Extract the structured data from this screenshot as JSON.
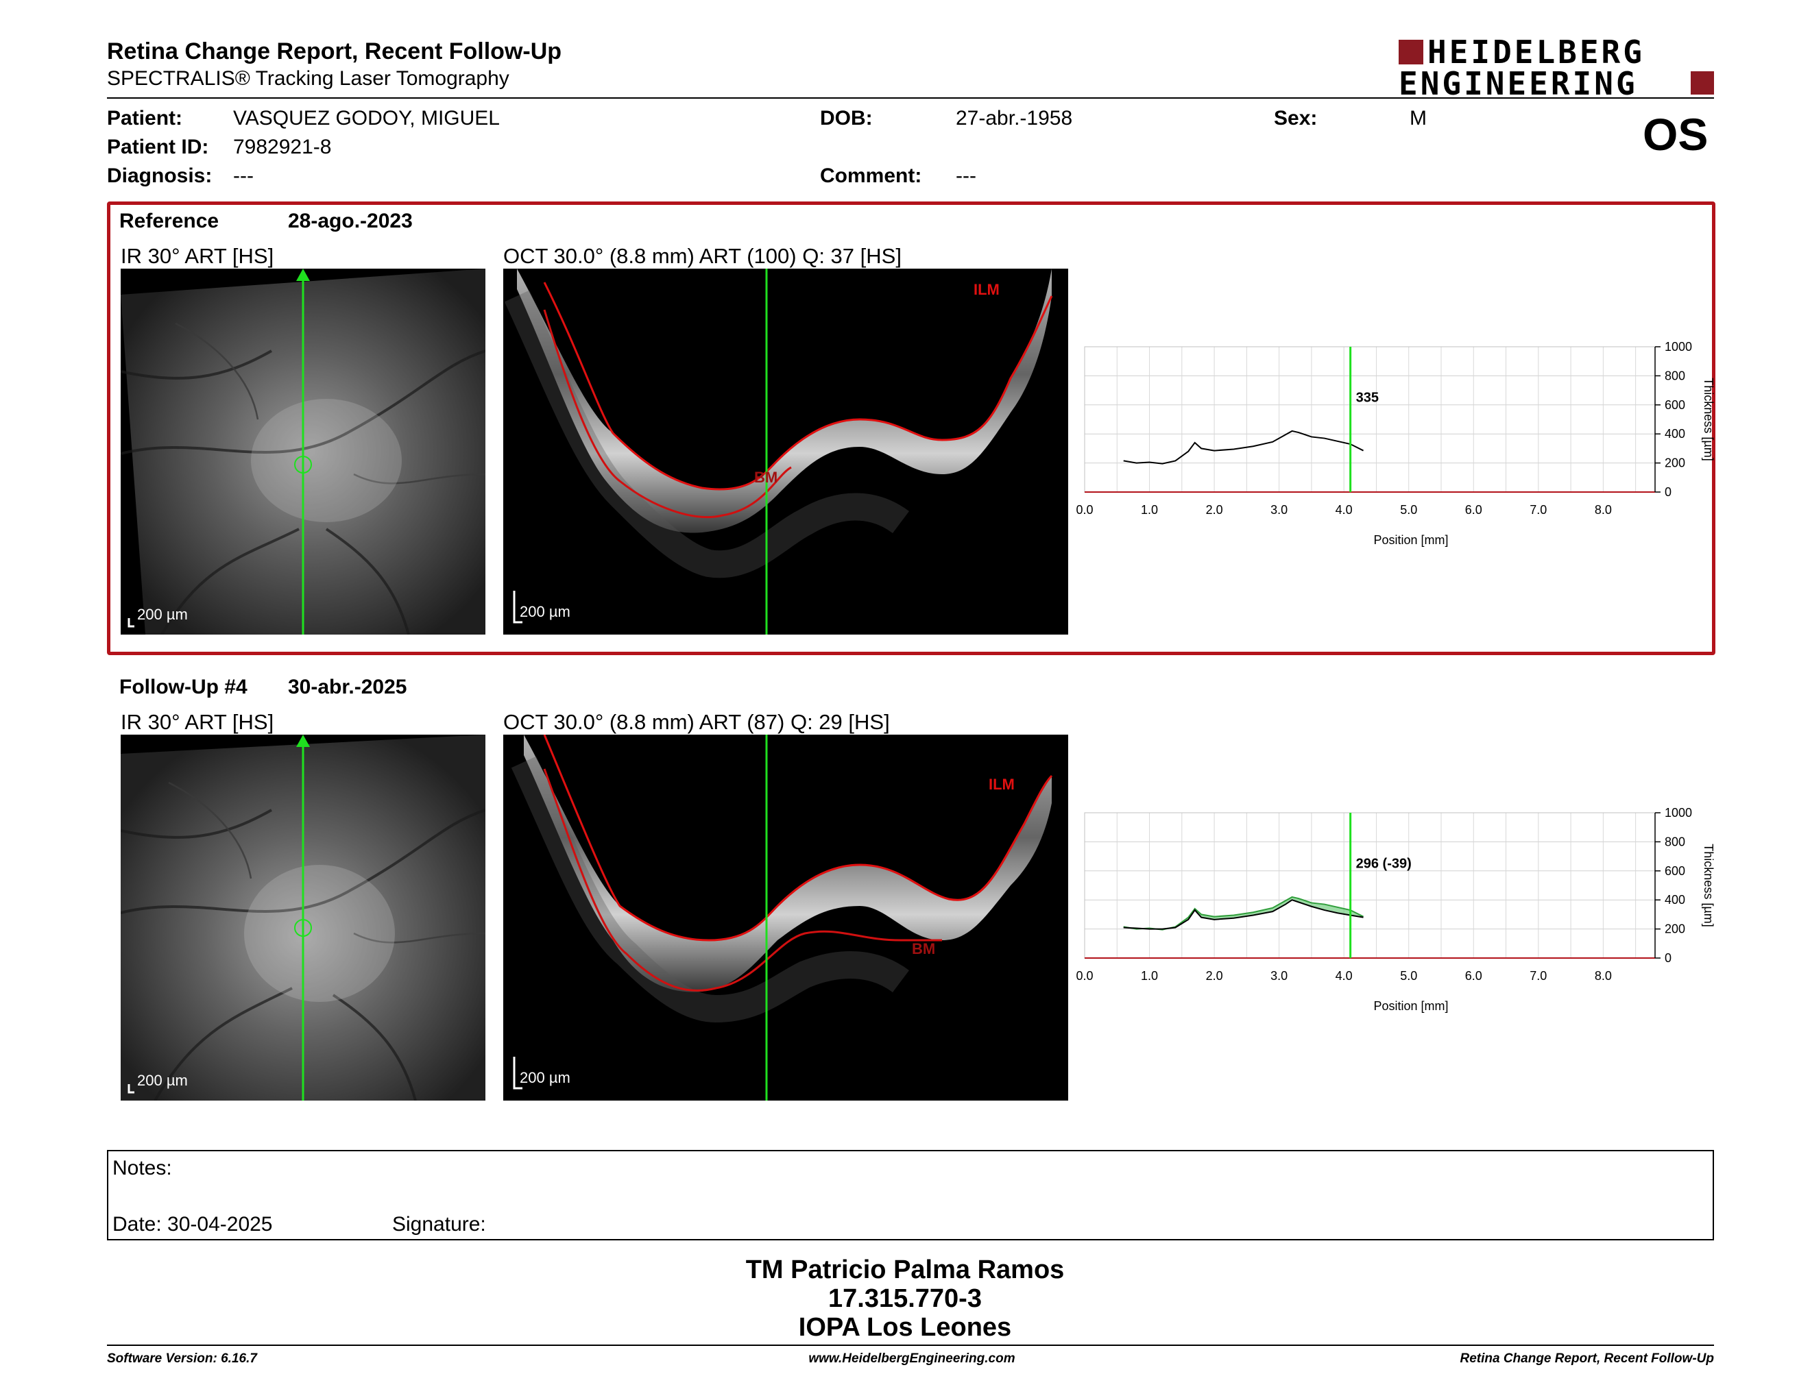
{
  "header": {
    "title": "Retina Change Report, Recent Follow-Up",
    "subtitle": "SPECTRALIS® Tracking Laser Tomography",
    "logo_line1": "HEIDELBERG",
    "logo_line2": "ENGINEERING",
    "eye": "OS"
  },
  "patient": {
    "patient_label": "Patient:",
    "patient_value": "VASQUEZ GODOY, MIGUEL",
    "id_label": "Patient ID:",
    "id_value": "7982921-8",
    "diagnosis_label": "Diagnosis:",
    "diagnosis_value": "---",
    "dob_label": "DOB:",
    "dob_value": "27-abr.-1958",
    "comment_label": "Comment:",
    "comment_value": "---",
    "sex_label": "Sex:",
    "sex_value": "M"
  },
  "reference": {
    "label": "Reference",
    "date": "28-ago.-2023",
    "ir_caption": "IR 30° ART [HS]",
    "oct_caption": "OCT 30.0° (8.8 mm) ART (100) Q: 37 [HS]",
    "scale_ir": "200 µm",
    "scale_oct": "200 µm",
    "ilm_label": "ILM",
    "bm_label": "BM"
  },
  "followup": {
    "label": "Follow-Up #4",
    "date": "30-abr.-2025",
    "ir_caption": "IR 30° ART [HS]",
    "oct_caption": "OCT 30.0° (8.8 mm) ART (87) Q: 29 [HS]",
    "scale_ir": "200 µm",
    "scale_oct": "200 µm",
    "ilm_label": "ILM",
    "bm_label": "BM"
  },
  "chart_data": [
    {
      "type": "line",
      "xlabel": "Position [mm]",
      "ylabel": "Thickness [µm]",
      "xlim": [
        0,
        8.8
      ],
      "ylim": [
        0,
        1000
      ],
      "xticks": [
        "0.0",
        "1.0",
        "2.0",
        "3.0",
        "4.0",
        "5.0",
        "6.0",
        "7.0",
        "8.0"
      ],
      "yticks": [
        "0",
        "200",
        "400",
        "600",
        "800",
        "1000"
      ],
      "cursor_x": 4.1,
      "cursor_label": "335",
      "grid": true,
      "series": [
        {
          "color": "#000000",
          "x": [
            0.6,
            0.8,
            1.0,
            1.2,
            1.4,
            1.6,
            1.7,
            1.8,
            2.0,
            2.3,
            2.6,
            2.9,
            3.1,
            3.2,
            3.3,
            3.5,
            3.7,
            3.9,
            4.1,
            4.3
          ],
          "y": [
            215,
            200,
            205,
            195,
            215,
            280,
            340,
            300,
            285,
            295,
            315,
            345,
            395,
            420,
            410,
            380,
            370,
            350,
            330,
            285
          ]
        }
      ]
    },
    {
      "type": "line",
      "xlabel": "Position [mm]",
      "ylabel": "Thickness [µm]",
      "xlim": [
        0,
        8.8
      ],
      "ylim": [
        0,
        1000
      ],
      "xticks": [
        "0.0",
        "1.0",
        "2.0",
        "3.0",
        "4.0",
        "5.0",
        "6.0",
        "7.0",
        "8.0"
      ],
      "yticks": [
        "0",
        "200",
        "400",
        "600",
        "800",
        "1000"
      ],
      "cursor_x": 4.1,
      "cursor_label": "296 (-39)",
      "grid": true,
      "series": [
        {
          "color": "#000000",
          "x": [
            0.6,
            0.8,
            1.0,
            1.2,
            1.4,
            1.6,
            1.7,
            1.8,
            2.0,
            2.3,
            2.6,
            2.9,
            3.1,
            3.2,
            3.3,
            3.5,
            3.7,
            3.9,
            4.1,
            4.3
          ],
          "y": [
            210,
            205,
            200,
            200,
            210,
            265,
            330,
            280,
            265,
            275,
            295,
            320,
            370,
            400,
            385,
            355,
            330,
            310,
            295,
            280
          ]
        },
        {
          "color": "#2f9e3a",
          "x": [
            0.6,
            0.8,
            1.0,
            1.2,
            1.4,
            1.6,
            1.7,
            1.8,
            2.0,
            2.3,
            2.6,
            2.9,
            3.1,
            3.2,
            3.3,
            3.5,
            3.7,
            3.9,
            4.1,
            4.3
          ],
          "y": [
            215,
            200,
            205,
            195,
            215,
            280,
            340,
            300,
            285,
            295,
            315,
            345,
            395,
            420,
            410,
            380,
            370,
            350,
            330,
            285
          ]
        }
      ]
    }
  ],
  "notes": {
    "notes_label": "Notes:",
    "date_label": "Date: 30-04-2025",
    "signature_label": "Signature:"
  },
  "operator": {
    "name": "TM Patricio Palma Ramos",
    "id": "17.315.770-3",
    "clinic": "IOPA Los Leones"
  },
  "footer": {
    "version": "Software Version: 6.16.7",
    "website": "www.HeidelbergEngineering.com",
    "report": "Retina Change Report, Recent Follow-Up"
  }
}
